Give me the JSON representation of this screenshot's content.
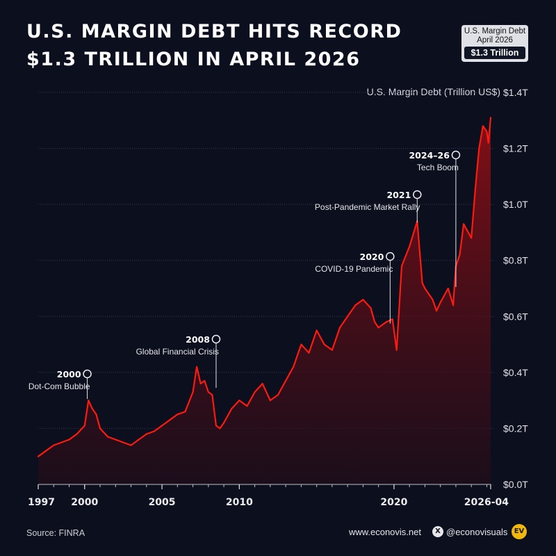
{
  "header": {
    "title_line1": "U.S. MARGIN DEBT HITS RECORD",
    "title_line2": "$1.3 TRILLION IN APRIL 2026"
  },
  "badge": {
    "label": "U.S. Margin Debt",
    "date": "April 2026",
    "value": "$1.3 Trillion"
  },
  "footer": {
    "source": "Source: FINRA",
    "website": "www.econovis.net",
    "social_icon": "x-twitter-icon",
    "handle": "@econovisuals",
    "logo_text": "EV"
  },
  "colors": {
    "background": "#0b0f1e",
    "line": "#ff1a10",
    "fill_top": "#8a0f16",
    "grid": "#3a3e50"
  },
  "chart_data": {
    "type": "area",
    "title": "U.S. MARGIN DEBT HITS RECORD $1.3 TRILLION IN APRIL 2026",
    "ylabel": "U.S. Margin Debt (Trillion US$)",
    "ylim": [
      0,
      1.4
    ],
    "xlim": [
      1997.0,
      2026.25
    ],
    "y_ticks": [
      {
        "value": 0.0,
        "label": "$0.0T"
      },
      {
        "value": 0.2,
        "label": "$0.2T"
      },
      {
        "value": 0.4,
        "label": "$0.4T"
      },
      {
        "value": 0.6,
        "label": "$0.6T"
      },
      {
        "value": 0.8,
        "label": "$0.8T"
      },
      {
        "value": 1.0,
        "label": "$1.0T"
      },
      {
        "value": 1.2,
        "label": "$1.2T"
      },
      {
        "value": 1.4,
        "label": "$1.4T"
      }
    ],
    "x_ticks": [
      {
        "value": 1997,
        "label": "1997"
      },
      {
        "value": 2000,
        "label": "2000"
      },
      {
        "value": 2005,
        "label": "2005"
      },
      {
        "value": 2010,
        "label": "2010"
      },
      {
        "value": 2020,
        "label": "2020"
      },
      {
        "value": 2026.25,
        "label": "2026-04"
      }
    ],
    "grid": true,
    "x": [
      1997.0,
      1997.5,
      1998.0,
      1998.5,
      1999.0,
      1999.5,
      2000.0,
      2000.25,
      2000.5,
      2000.75,
      2001.0,
      2001.5,
      2002.0,
      2002.5,
      2003.0,
      2003.5,
      2004.0,
      2004.5,
      2005.0,
      2005.5,
      2006.0,
      2006.5,
      2007.0,
      2007.25,
      2007.5,
      2007.75,
      2008.0,
      2008.25,
      2008.5,
      2008.75,
      2009.0,
      2009.5,
      2010.0,
      2010.5,
      2011.0,
      2011.5,
      2012.0,
      2012.5,
      2013.0,
      2013.5,
      2014.0,
      2014.5,
      2015.0,
      2015.5,
      2016.0,
      2016.5,
      2017.0,
      2017.5,
      2018.0,
      2018.5,
      2018.75,
      2019.0,
      2019.5,
      2019.9,
      2020.17,
      2020.5,
      2021.0,
      2021.5,
      2021.83,
      2022.0,
      2022.5,
      2022.75,
      2023.0,
      2023.5,
      2023.83,
      2024.0,
      2024.25,
      2024.5,
      2025.0,
      2025.25,
      2025.5,
      2025.75,
      2026.0,
      2026.1,
      2026.25
    ],
    "series": [
      {
        "values": [
          0.1,
          0.12,
          0.14,
          0.15,
          0.16,
          0.18,
          0.21,
          0.3,
          0.27,
          0.25,
          0.2,
          0.17,
          0.16,
          0.15,
          0.14,
          0.16,
          0.18,
          0.19,
          0.21,
          0.23,
          0.25,
          0.26,
          0.33,
          0.42,
          0.36,
          0.37,
          0.33,
          0.32,
          0.21,
          0.2,
          0.22,
          0.27,
          0.3,
          0.28,
          0.33,
          0.36,
          0.3,
          0.32,
          0.37,
          0.42,
          0.5,
          0.47,
          0.55,
          0.5,
          0.48,
          0.56,
          0.6,
          0.64,
          0.66,
          0.63,
          0.58,
          0.56,
          0.58,
          0.59,
          0.48,
          0.78,
          0.85,
          0.94,
          0.72,
          0.7,
          0.66,
          0.62,
          0.65,
          0.7,
          0.64,
          0.78,
          0.82,
          0.93,
          0.88,
          1.05,
          1.2,
          1.28,
          1.26,
          1.22,
          1.31
        ]
      }
    ],
    "annotations": [
      {
        "year": "2000",
        "text": "Dot-Com Bubble",
        "x": 2000.17,
        "y": 0.3
      },
      {
        "year": "2008",
        "text": "Global Financial Crisis",
        "x": 2008.5,
        "y": 0.34
      },
      {
        "year": "2020",
        "text": "COVID-19 Pandemic",
        "x": 2019.75,
        "y": 0.57
      },
      {
        "year": "2021",
        "text": "Post-Pandemic Market Rally",
        "x": 2021.5,
        "y": 0.93
      },
      {
        "year": "2024–26",
        "text": "Tech Boom",
        "x": 2024.0,
        "y": 0.7
      }
    ]
  }
}
